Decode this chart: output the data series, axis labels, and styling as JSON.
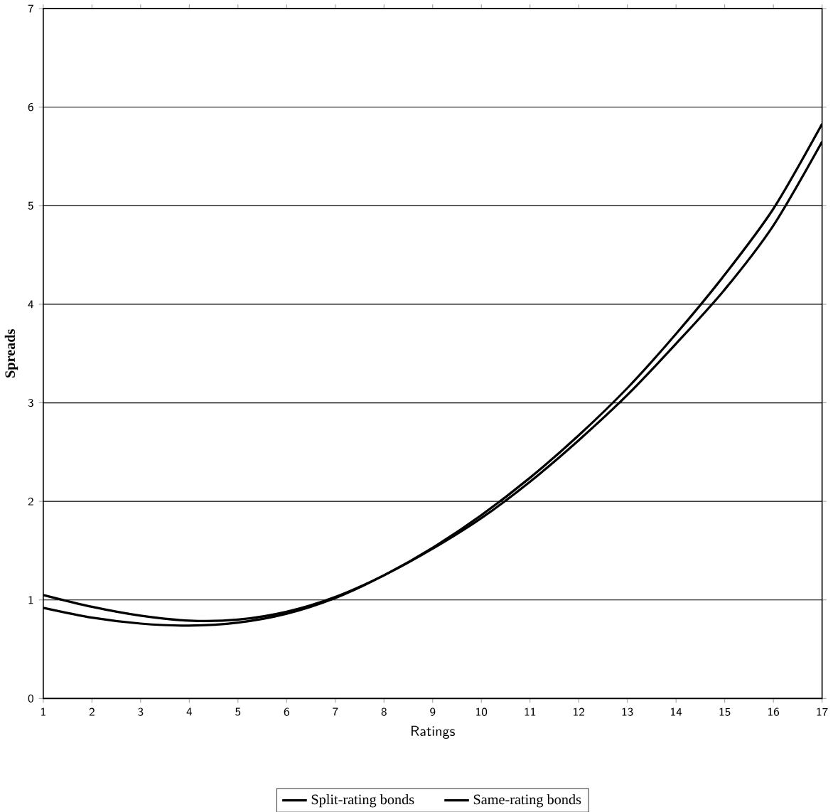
{
  "chart_data": {
    "type": "line",
    "xlabel": "Ratings",
    "ylabel": "Spreads",
    "x": [
      1,
      2,
      3,
      4,
      5,
      6,
      7,
      8,
      9,
      10,
      11,
      12,
      13,
      14,
      15,
      16,
      17
    ],
    "series": [
      {
        "name": "Split-rating bonds",
        "color": "#000000",
        "values": [
          1.05,
          0.93,
          0.84,
          0.79,
          0.8,
          0.88,
          1.03,
          1.25,
          1.52,
          1.83,
          2.2,
          2.62,
          3.08,
          3.6,
          4.15,
          4.8,
          5.65
        ]
      },
      {
        "name": "Same-rating bonds",
        "color": "#000000",
        "values": [
          0.92,
          0.82,
          0.76,
          0.74,
          0.77,
          0.86,
          1.02,
          1.25,
          1.53,
          1.86,
          2.24,
          2.67,
          3.15,
          3.7,
          4.3,
          4.97,
          5.83
        ]
      }
    ],
    "xlim": [
      1,
      17
    ],
    "xticks": [
      1,
      2,
      3,
      4,
      5,
      6,
      7,
      8,
      9,
      10,
      11,
      12,
      13,
      14,
      15,
      16,
      17
    ],
    "ylim": [
      0,
      7
    ],
    "yticks": [
      0,
      1,
      2,
      3,
      4,
      5,
      6,
      7
    ],
    "grid": "y",
    "legend": "bottom",
    "marker": "none",
    "line_style": "solid"
  }
}
